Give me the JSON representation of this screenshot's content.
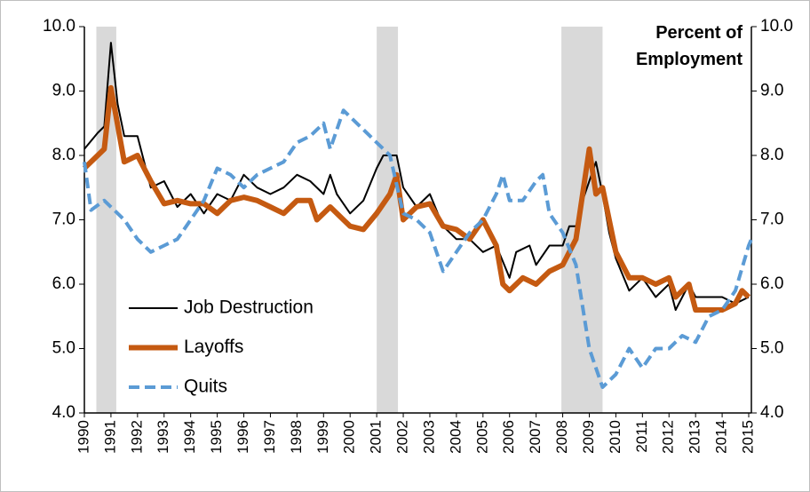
{
  "chart_data": {
    "type": "line",
    "axis_title": "Percent of Employment",
    "xlim": [
      1990,
      2015.1
    ],
    "xticks": [
      1990,
      1991,
      1992,
      1993,
      1994,
      1995,
      1996,
      1997,
      1998,
      1999,
      2000,
      2001,
      2002,
      2003,
      2004,
      2005,
      2006,
      2007,
      2008,
      2009,
      2010,
      2011,
      2012,
      2013,
      2014,
      2015
    ],
    "ylim": [
      4,
      10
    ],
    "yticks": [
      {
        "value": 4,
        "label": "4.0"
      },
      {
        "value": 5,
        "label": "5.0"
      },
      {
        "value": 6,
        "label": "6.0"
      },
      {
        "value": 7,
        "label": "7.0"
      },
      {
        "value": 8,
        "label": "8.0"
      },
      {
        "value": 9,
        "label": "9.0"
      },
      {
        "value": 10,
        "label": "10.0"
      }
    ],
    "y2lim": [
      4,
      10
    ],
    "y2ticks": [
      {
        "value": 4,
        "label": "4.0"
      },
      {
        "value": 5,
        "label": "5.0"
      },
      {
        "value": 6,
        "label": "6.0"
      },
      {
        "value": 7,
        "label": "7.0"
      },
      {
        "value": 8,
        "label": "8.0"
      },
      {
        "value": 9,
        "label": "9.0"
      },
      {
        "value": 10,
        "label": "10.0"
      }
    ],
    "recessions": [
      [
        1990.45,
        1991.2
      ],
      [
        2001.0,
        2001.8
      ],
      [
        2007.95,
        2009.5
      ]
    ],
    "recession_color": "#d9d9d9",
    "series": [
      {
        "name": "Job Destruction",
        "color": "#000000",
        "width": 2,
        "dash": false,
        "x": [
          1990,
          1990.5,
          1990.75,
          1991,
          1991.25,
          1991.5,
          1992,
          1992.25,
          1992.5,
          1993,
          1993.5,
          1994,
          1994.5,
          1995,
          1995.5,
          1996,
          1996.5,
          1997,
          1997.5,
          1998,
          1998.5,
          1999,
          1999.25,
          1999.5,
          2000,
          2000.5,
          2001,
          2001.25,
          2001.75,
          2002,
          2002.5,
          2003,
          2003.5,
          2004,
          2004.5,
          2005,
          2005.5,
          2006,
          2006.25,
          2006.75,
          2007,
          2007.5,
          2008,
          2008.25,
          2008.5,
          2008.75,
          2009,
          2009.25,
          2009.5,
          2009.75,
          2010,
          2010.5,
          2011,
          2011.5,
          2012,
          2012.25,
          2012.75,
          2013,
          2013.5,
          2014,
          2014.5,
          2015
        ],
        "values": [
          8.1,
          8.35,
          8.45,
          9.75,
          8.8,
          8.3,
          8.3,
          7.9,
          7.5,
          7.6,
          7.2,
          7.4,
          7.1,
          7.4,
          7.3,
          7.7,
          7.5,
          7.4,
          7.5,
          7.7,
          7.6,
          7.4,
          7.7,
          7.4,
          7.1,
          7.3,
          7.8,
          8.0,
          8.0,
          7.5,
          7.2,
          7.4,
          6.9,
          6.7,
          6.7,
          6.5,
          6.6,
          6.1,
          6.5,
          6.6,
          6.3,
          6.6,
          6.6,
          6.9,
          6.9,
          7.3,
          7.6,
          7.9,
          7.4,
          6.8,
          6.4,
          5.9,
          6.1,
          5.8,
          6.0,
          5.6,
          6.0,
          5.8,
          5.8,
          5.8,
          5.7,
          5.8
        ]
      },
      {
        "name": "Layoffs",
        "color": "#c55a11",
        "width": 6,
        "dash": false,
        "x": [
          1990,
          1990.75,
          1991,
          1991.5,
          1992,
          1992.5,
          1993,
          1993.5,
          1994,
          1994.5,
          1995,
          1995.5,
          1996,
          1996.5,
          1997,
          1997.5,
          1998,
          1998.5,
          1998.75,
          1999.25,
          1999.75,
          2000,
          2000.5,
          2001,
          2001.5,
          2001.75,
          2002,
          2002.5,
          2003,
          2003.5,
          2004,
          2004.5,
          2005,
          2005.5,
          2005.75,
          2006,
          2006.5,
          2007,
          2007.5,
          2008,
          2008.5,
          2009,
          2009.25,
          2009.5,
          2010,
          2010.5,
          2011,
          2011.5,
          2012,
          2012.25,
          2012.75,
          2013,
          2013.5,
          2014,
          2014.5,
          2014.75,
          2015
        ],
        "values": [
          7.8,
          8.1,
          9.05,
          7.9,
          8.0,
          7.6,
          7.25,
          7.3,
          7.25,
          7.25,
          7.1,
          7.3,
          7.35,
          7.3,
          7.2,
          7.1,
          7.3,
          7.3,
          7.0,
          7.2,
          7.0,
          6.9,
          6.85,
          7.1,
          7.4,
          7.7,
          7.0,
          7.2,
          7.25,
          6.9,
          6.85,
          6.7,
          7.0,
          6.6,
          6.0,
          5.9,
          6.1,
          6.0,
          6.2,
          6.3,
          6.7,
          8.1,
          7.4,
          7.5,
          6.5,
          6.1,
          6.1,
          6.0,
          6.1,
          5.8,
          6.0,
          5.6,
          5.6,
          5.6,
          5.7,
          5.9,
          5.8
        ]
      },
      {
        "name": "Quits",
        "color": "#5b9bd5",
        "width": 4,
        "dash": true,
        "x": [
          1990,
          1990.25,
          1990.75,
          1991.5,
          1992,
          1992.5,
          1993,
          1993.5,
          1994,
          1994.5,
          1995,
          1995.5,
          1996,
          1996.5,
          1997,
          1997.5,
          1998,
          1998.5,
          1999,
          1999.25,
          1999.75,
          2000.5,
          2001,
          2001.5,
          2002,
          2002.5,
          2003,
          2003.5,
          2004,
          2004.5,
          2005,
          2005.5,
          2005.75,
          2006,
          2006.5,
          2007,
          2007.25,
          2007.5,
          2008,
          2008.5,
          2009,
          2009.5,
          2010,
          2010.5,
          2011,
          2011.5,
          2012,
          2012.5,
          2013,
          2013.5,
          2014,
          2014.5,
          2015,
          2015.1
        ],
        "values": [
          7.9,
          7.15,
          7.3,
          7.0,
          6.7,
          6.5,
          6.6,
          6.7,
          7.0,
          7.3,
          7.8,
          7.7,
          7.5,
          7.7,
          7.8,
          7.9,
          8.2,
          8.3,
          8.5,
          8.1,
          8.7,
          8.4,
          8.2,
          8.0,
          7.1,
          7.0,
          6.8,
          6.2,
          6.5,
          6.8,
          7.0,
          7.4,
          7.7,
          7.3,
          7.3,
          7.6,
          7.7,
          7.1,
          6.8,
          6.3,
          5.0,
          4.4,
          4.6,
          5.0,
          4.7,
          5.0,
          5.0,
          5.2,
          5.1,
          5.5,
          5.6,
          5.9,
          6.6,
          6.7
        ]
      }
    ]
  }
}
